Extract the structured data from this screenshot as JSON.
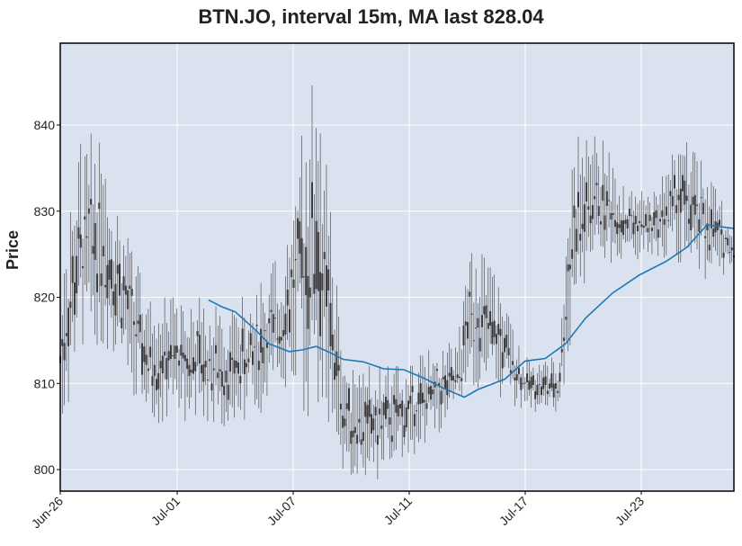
{
  "chart_data": {
    "type": "ohlc",
    "title": "BTN.JO, interval 15m, MA last 828.04",
    "xlabel": "",
    "ylabel": "Price",
    "x_tick_labels": [
      "Jun-26",
      "Jul-01",
      "Jul-07",
      "Jul-11",
      "Jul-17",
      "Jul-23"
    ],
    "y_ticks": [
      800,
      810,
      820,
      830,
      840
    ],
    "ylim": [
      797.5,
      849.5
    ],
    "grid": true,
    "colors": {
      "background": "#dbe2ef",
      "grid": "#ffffff",
      "candle": "#3a3a3a",
      "ma_line": "#1f77b4"
    },
    "ma_last": 828.04,
    "price_envelope": [
      {
        "t": 0.0,
        "low": 805,
        "high": 822
      },
      {
        "t": 0.03,
        "low": 812,
        "high": 839
      },
      {
        "t": 0.06,
        "low": 815,
        "high": 839
      },
      {
        "t": 0.09,
        "low": 812,
        "high": 830
      },
      {
        "t": 0.13,
        "low": 805,
        "high": 820
      },
      {
        "t": 0.17,
        "low": 806,
        "high": 820
      },
      {
        "t": 0.21,
        "low": 805,
        "high": 820
      },
      {
        "t": 0.25,
        "low": 805,
        "high": 818
      },
      {
        "t": 0.29,
        "low": 805,
        "high": 822
      },
      {
        "t": 0.33,
        "low": 810,
        "high": 825
      },
      {
        "t": 0.38,
        "low": 805,
        "high": 849
      },
      {
        "t": 0.42,
        "low": 800,
        "high": 813
      },
      {
        "t": 0.46,
        "low": 798,
        "high": 812
      },
      {
        "t": 0.51,
        "low": 801,
        "high": 812
      },
      {
        "t": 0.55,
        "low": 803,
        "high": 814
      },
      {
        "t": 0.59,
        "low": 806,
        "high": 815
      },
      {
        "t": 0.61,
        "low": 810,
        "high": 827
      },
      {
        "t": 0.65,
        "low": 808,
        "high": 822
      },
      {
        "t": 0.69,
        "low": 807,
        "high": 813
      },
      {
        "t": 0.74,
        "low": 806,
        "high": 813
      },
      {
        "t": 0.76,
        "low": 816,
        "high": 839
      },
      {
        "t": 0.8,
        "low": 824,
        "high": 839
      },
      {
        "t": 0.84,
        "low": 824,
        "high": 833
      },
      {
        "t": 0.88,
        "low": 825,
        "high": 832
      },
      {
        "t": 0.92,
        "low": 824,
        "high": 839
      },
      {
        "t": 0.96,
        "low": 822,
        "high": 835
      },
      {
        "t": 1.0,
        "low": 823,
        "high": 828
      }
    ],
    "ma_series": [
      {
        "t": 0.22,
        "v": 819.7
      },
      {
        "t": 0.24,
        "v": 818.9
      },
      {
        "t": 0.26,
        "v": 818.3
      },
      {
        "t": 0.29,
        "v": 816.2
      },
      {
        "t": 0.31,
        "v": 814.6
      },
      {
        "t": 0.34,
        "v": 813.7
      },
      {
        "t": 0.36,
        "v": 813.9
      },
      {
        "t": 0.38,
        "v": 814.3
      },
      {
        "t": 0.4,
        "v": 813.6
      },
      {
        "t": 0.42,
        "v": 812.8
      },
      {
        "t": 0.45,
        "v": 812.5
      },
      {
        "t": 0.48,
        "v": 811.7
      },
      {
        "t": 0.51,
        "v": 811.6
      },
      {
        "t": 0.54,
        "v": 810.6
      },
      {
        "t": 0.57,
        "v": 809.4
      },
      {
        "t": 0.6,
        "v": 808.4
      },
      {
        "t": 0.62,
        "v": 809.3
      },
      {
        "t": 0.66,
        "v": 810.5
      },
      {
        "t": 0.69,
        "v": 812.6
      },
      {
        "t": 0.72,
        "v": 812.9
      },
      {
        "t": 0.75,
        "v": 814.6
      },
      {
        "t": 0.78,
        "v": 817.6
      },
      {
        "t": 0.82,
        "v": 820.5
      },
      {
        "t": 0.86,
        "v": 822.6
      },
      {
        "t": 0.9,
        "v": 824.2
      },
      {
        "t": 0.93,
        "v": 825.8
      },
      {
        "t": 0.96,
        "v": 828.4
      },
      {
        "t": 1.0,
        "v": 828.0
      }
    ]
  }
}
